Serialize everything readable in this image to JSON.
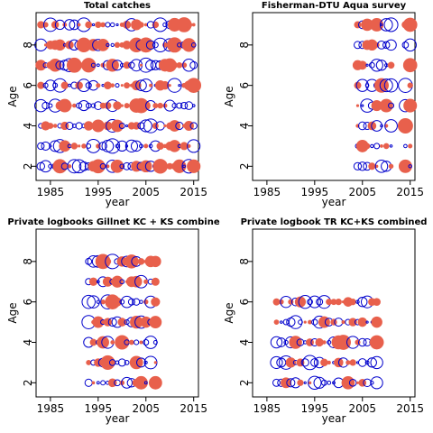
{
  "colors": {
    "positive": "#e8604c",
    "negative": "#0000cc",
    "axis": "#000000"
  },
  "chart_data": [
    {
      "type": "scatter",
      "title": "Total catches",
      "xlabel": "year",
      "ylabel": "Age",
      "xlim": [
        1982,
        2016
      ],
      "ylim": [
        1.3,
        9.6
      ],
      "xticks": [
        1985,
        1995,
        2005,
        2015
      ],
      "yticks": [
        2,
        4,
        6,
        8
      ],
      "ages": [
        2,
        3,
        4,
        5,
        6,
        7,
        8,
        9
      ],
      "x_range": [
        1983,
        2015
      ],
      "density": 1.0,
      "seed": 11
    },
    {
      "type": "scatter",
      "title": "Fisherman-DTU Aqua survey",
      "xlabel": "year",
      "ylabel": "Age",
      "xlim": [
        1982,
        2016
      ],
      "ylim": [
        1.3,
        9.6
      ],
      "xticks": [
        1985,
        1995,
        2005,
        2015
      ],
      "yticks": [
        2,
        4,
        6,
        8
      ],
      "ages": [
        2,
        3,
        4,
        5,
        6,
        7,
        8,
        9
      ],
      "x_range": [
        2004,
        2015
      ],
      "gap": [
        2012,
        2013
      ],
      "density": 1.0,
      "seed": 23
    },
    {
      "type": "scatter",
      "title": "Private logbooks Gillnet KC + KS combine",
      "xlabel": "year",
      "ylabel": "Age",
      "xlim": [
        1982,
        2016
      ],
      "ylim": [
        1.3,
        9.6
      ],
      "xticks": [
        1985,
        1995,
        2005,
        2015
      ],
      "yticks": [
        2,
        4,
        6,
        8
      ],
      "ages": [
        2,
        3,
        4,
        5,
        6,
        7,
        8
      ],
      "x_range": [
        1993,
        2007
      ],
      "density": 1.0,
      "seed": 37
    },
    {
      "type": "scatter",
      "title": "Private logbook TR KC+KS combined",
      "xlabel": "year",
      "ylabel": "Age",
      "xlim": [
        1982,
        2016
      ],
      "ylim": [
        1.3,
        9.6
      ],
      "xticks": [
        1985,
        1995,
        2005,
        2015
      ],
      "yticks": [
        2,
        4,
        6,
        8
      ],
      "ages": [
        2,
        3,
        4,
        5,
        6
      ],
      "x_range": [
        1987,
        2008
      ],
      "density": 1.0,
      "seed": 53
    }
  ]
}
